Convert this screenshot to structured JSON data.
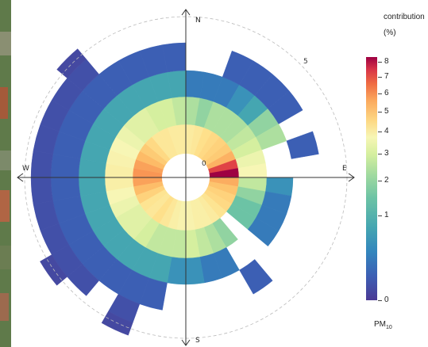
{
  "chart_data": {
    "type": "polar",
    "chart_style": "pollution rose / polar frequency plot",
    "directions": {
      "north": "N",
      "east": "E",
      "south": "S",
      "west": "W"
    },
    "radial_labels": [
      "0",
      "5"
    ],
    "legend": {
      "title_line1": "contribution",
      "title_line2": "(%)",
      "footer_main": "PM",
      "footer_sub": "10",
      "ticks": [
        "0",
        "1",
        "2",
        "3",
        "4",
        "5",
        "6",
        "7",
        "8"
      ],
      "tick_values": [
        0,
        1,
        2,
        3,
        4,
        5,
        6,
        7,
        8
      ],
      "range": [
        0,
        8.3
      ]
    },
    "bin_width_deg": 10,
    "segments": [
      {
        "ring": 0,
        "a": 275,
        "v": 3.8
      },
      {
        "ring": 0,
        "a": 285,
        "v": 3.5
      },
      {
        "ring": 0,
        "a": 265,
        "v": 3.5
      },
      {
        "ring": 0,
        "a": 295,
        "v": 2.7
      },
      {
        "ring": 0,
        "a": 255,
        "v": 2.6
      },
      {
        "ring": 0,
        "a": 305,
        "v": 2.2
      },
      {
        "ring": 0,
        "a": 245,
        "v": 2.0
      },
      {
        "ring": 0,
        "a": 315,
        "v": 1.8
      },
      {
        "ring": 0,
        "a": 235,
        "v": 1.5
      },
      {
        "ring": 0,
        "a": 325,
        "v": 1.4
      },
      {
        "ring": 0,
        "a": 335,
        "v": 1.4
      },
      {
        "ring": 0,
        "a": 345,
        "v": 1.3
      },
      {
        "ring": 0,
        "a": 355,
        "v": 1.3
      },
      {
        "ring": 0,
        "a": 5,
        "v": 1.3
      },
      {
        "ring": 0,
        "a": 15,
        "v": 1.4
      },
      {
        "ring": 0,
        "a": 25,
        "v": 1.6
      },
      {
        "ring": 0,
        "a": 35,
        "v": 1.8
      },
      {
        "ring": 0,
        "a": 45,
        "v": 2.0
      },
      {
        "ring": 0,
        "a": 55,
        "v": 2.2
      },
      {
        "ring": 0,
        "a": 65,
        "v": 3.0
      },
      {
        "ring": 0,
        "a": 75,
        "v": 6.0
      },
      {
        "ring": 0,
        "a": 85,
        "v": 8.0
      },
      {
        "ring": 0,
        "a": 95,
        "v": 3.2
      },
      {
        "ring": 0,
        "a": 105,
        "v": 2.4
      },
      {
        "ring": 0,
        "a": 115,
        "v": 2.0
      },
      {
        "ring": 0,
        "a": 125,
        "v": 1.8
      },
      {
        "ring": 0,
        "a": 135,
        "v": 1.5
      },
      {
        "ring": 0,
        "a": 145,
        "v": 1.3
      },
      {
        "ring": 0,
        "a": 155,
        "v": 1.2
      },
      {
        "ring": 0,
        "a": 165,
        "v": 1.2
      },
      {
        "ring": 0,
        "a": 175,
        "v": 1.1
      },
      {
        "ring": 0,
        "a": 185,
        "v": 1.1
      },
      {
        "ring": 0,
        "a": 195,
        "v": 1.2
      },
      {
        "ring": 0,
        "a": 205,
        "v": 1.4
      },
      {
        "ring": 0,
        "a": 215,
        "v": 1.6
      },
      {
        "ring": 0,
        "a": 225,
        "v": 1.4
      },
      {
        "ring": 1,
        "a": 275,
        "v": 1.2
      },
      {
        "ring": 1,
        "a": 285,
        "v": 1.1
      },
      {
        "ring": 1,
        "a": 265,
        "v": 1.2
      },
      {
        "ring": 1,
        "a": 295,
        "v": 1.0
      },
      {
        "ring": 1,
        "a": 255,
        "v": 1.0
      },
      {
        "ring": 1,
        "a": 305,
        "v": 0.9
      },
      {
        "ring": 1,
        "a": 245,
        "v": 0.9
      },
      {
        "ring": 1,
        "a": 315,
        "v": 0.8
      },
      {
        "ring": 1,
        "a": 235,
        "v": 0.8
      },
      {
        "ring": 1,
        "a": 325,
        "v": 0.8
      },
      {
        "ring": 1,
        "a": 335,
        "v": 0.7
      },
      {
        "ring": 1,
        "a": 345,
        "v": 0.7
      },
      {
        "ring": 1,
        "a": 355,
        "v": 0.6
      },
      {
        "ring": 1,
        "a": 5,
        "v": 0.5
      },
      {
        "ring": 1,
        "a": 15,
        "v": 0.4
      },
      {
        "ring": 1,
        "a": 25,
        "v": 0.5
      },
      {
        "ring": 1,
        "a": 35,
        "v": 0.5
      },
      {
        "ring": 1,
        "a": 45,
        "v": 0.5
      },
      {
        "ring": 1,
        "a": 55,
        "v": 0.6
      },
      {
        "ring": 1,
        "a": 65,
        "v": 0.7
      },
      {
        "ring": 1,
        "a": 75,
        "v": 0.9
      },
      {
        "ring": 1,
        "a": 85,
        "v": 1.0
      },
      {
        "ring": 1,
        "a": 95,
        "v": 0.6
      },
      {
        "ring": 1,
        "a": 105,
        "v": 0.4
      },
      {
        "ring": 1,
        "a": 115,
        "v": 0.3
      },
      {
        "ring": 1,
        "a": 125,
        "v": 0.3
      },
      {
        "ring": 1,
        "a": 145,
        "v": 0.4
      },
      {
        "ring": 1,
        "a": 155,
        "v": 0.5
      },
      {
        "ring": 1,
        "a": 165,
        "v": 0.6
      },
      {
        "ring": 1,
        "a": 175,
        "v": 0.7
      },
      {
        "ring": 1,
        "a": 185,
        "v": 0.6
      },
      {
        "ring": 1,
        "a": 195,
        "v": 0.6
      },
      {
        "ring": 1,
        "a": 205,
        "v": 0.6
      },
      {
        "ring": 1,
        "a": 215,
        "v": 0.7
      },
      {
        "ring": 1,
        "a": 225,
        "v": 0.8
      },
      {
        "ring": 2,
        "a": 275,
        "v": 0.2
      },
      {
        "ring": 2,
        "a": 285,
        "v": 0.2
      },
      {
        "ring": 2,
        "a": 265,
        "v": 0.2
      },
      {
        "ring": 2,
        "a": 295,
        "v": 0.2
      },
      {
        "ring": 2,
        "a": 255,
        "v": 0.2
      },
      {
        "ring": 2,
        "a": 305,
        "v": 0.2
      },
      {
        "ring": 2,
        "a": 245,
        "v": 0.2
      },
      {
        "ring": 2,
        "a": 315,
        "v": 0.2
      },
      {
        "ring": 2,
        "a": 235,
        "v": 0.2
      },
      {
        "ring": 2,
        "a": 325,
        "v": 0.2
      },
      {
        "ring": 2,
        "a": 335,
        "v": 0.2
      },
      {
        "ring": 2,
        "a": 345,
        "v": 0.2
      },
      {
        "ring": 2,
        "a": 355,
        "v": 0.2
      },
      {
        "ring": 2,
        "a": 5,
        "v": 0.1
      },
      {
        "ring": 2,
        "a": 15,
        "v": 0.1
      },
      {
        "ring": 2,
        "a": 25,
        "v": 0.1
      },
      {
        "ring": 2,
        "a": 35,
        "v": 0.15
      },
      {
        "ring": 2,
        "a": 45,
        "v": 0.2
      },
      {
        "ring": 2,
        "a": 55,
        "v": 0.4
      },
      {
        "ring": 2,
        "a": 65,
        "v": 0.5
      },
      {
        "ring": 2,
        "a": 95,
        "v": 0.15
      },
      {
        "ring": 2,
        "a": 105,
        "v": 0.1
      },
      {
        "ring": 2,
        "a": 115,
        "v": 0.1
      },
      {
        "ring": 2,
        "a": 125,
        "v": 0.1
      },
      {
        "ring": 2,
        "a": 155,
        "v": 0.1
      },
      {
        "ring": 2,
        "a": 165,
        "v": 0.1
      },
      {
        "ring": 2,
        "a": 175,
        "v": 0.15
      },
      {
        "ring": 2,
        "a": 185,
        "v": 0.15
      },
      {
        "ring": 2,
        "a": 195,
        "v": 0.2
      },
      {
        "ring": 2,
        "a": 205,
        "v": 0.2
      },
      {
        "ring": 2,
        "a": 215,
        "v": 0.2
      },
      {
        "ring": 2,
        "a": 225,
        "v": 0.2
      },
      {
        "ring": 3,
        "a": 275,
        "v": 0.05
      },
      {
        "ring": 3,
        "a": 285,
        "v": 0.05
      },
      {
        "ring": 3,
        "a": 295,
        "v": 0.05
      },
      {
        "ring": 3,
        "a": 265,
        "v": 0.05
      },
      {
        "ring": 3,
        "a": 255,
        "v": 0.05
      },
      {
        "ring": 3,
        "a": 245,
        "v": 0.05
      },
      {
        "ring": 3,
        "a": 235,
        "v": 0.05
      },
      {
        "ring": 3,
        "a": 225,
        "v": 0.05
      },
      {
        "ring": 3,
        "a": 215,
        "v": 0.05
      },
      {
        "ring": 3,
        "a": 305,
        "v": 0.05
      },
      {
        "ring": 3,
        "a": 315,
        "v": 0.05
      },
      {
        "ring": 3,
        "a": 325,
        "v": 0.05
      },
      {
        "ring": 3,
        "a": 335,
        "v": 0.05
      },
      {
        "ring": 3,
        "a": 345,
        "v": 0.05
      },
      {
        "ring": 3,
        "a": 355,
        "v": 0.05
      },
      {
        "ring": 3,
        "a": 205,
        "v": 0.05
      },
      {
        "ring": 3,
        "a": 195,
        "v": 0.05
      },
      {
        "ring": 3,
        "a": 75,
        "v": 0.05
      },
      {
        "ring": 3,
        "a": 25,
        "v": 0.05
      },
      {
        "ring": 3,
        "a": 35,
        "v": 0.05
      },
      {
        "ring": 3,
        "a": 45,
        "v": 0.05
      },
      {
        "ring": 3,
        "a": 55,
        "v": 0.05
      },
      {
        "ring": 3,
        "a": 145,
        "v": 0.05
      },
      {
        "ring": 4,
        "a": 295,
        "v": 0.03
      },
      {
        "ring": 4,
        "a": 305,
        "v": 0.03
      },
      {
        "ring": 4,
        "a": 315,
        "v": 0.03
      },
      {
        "ring": 4,
        "a": 285,
        "v": 0.03
      },
      {
        "ring": 4,
        "a": 275,
        "v": 0.03
      },
      {
        "ring": 4,
        "a": 265,
        "v": 0.03
      },
      {
        "ring": 4,
        "a": 255,
        "v": 0.03
      },
      {
        "ring": 4,
        "a": 245,
        "v": 0.03
      },
      {
        "ring": 4,
        "a": 235,
        "v": 0.03
      },
      {
        "ring": 4,
        "a": 225,
        "v": 0.03
      },
      {
        "ring": 4,
        "a": 205,
        "v": 0.03
      },
      {
        "ring": 5,
        "a": 315,
        "v": 0.02
      },
      {
        "ring": 5,
        "a": 235,
        "v": 0.02
      },
      {
        "ring": 5,
        "a": 205,
        "v": 0.02
      }
    ],
    "grid_circles": true,
    "legend_placement": "right",
    "axis_color": "#333333",
    "grid_color": "#bbbbbb"
  }
}
